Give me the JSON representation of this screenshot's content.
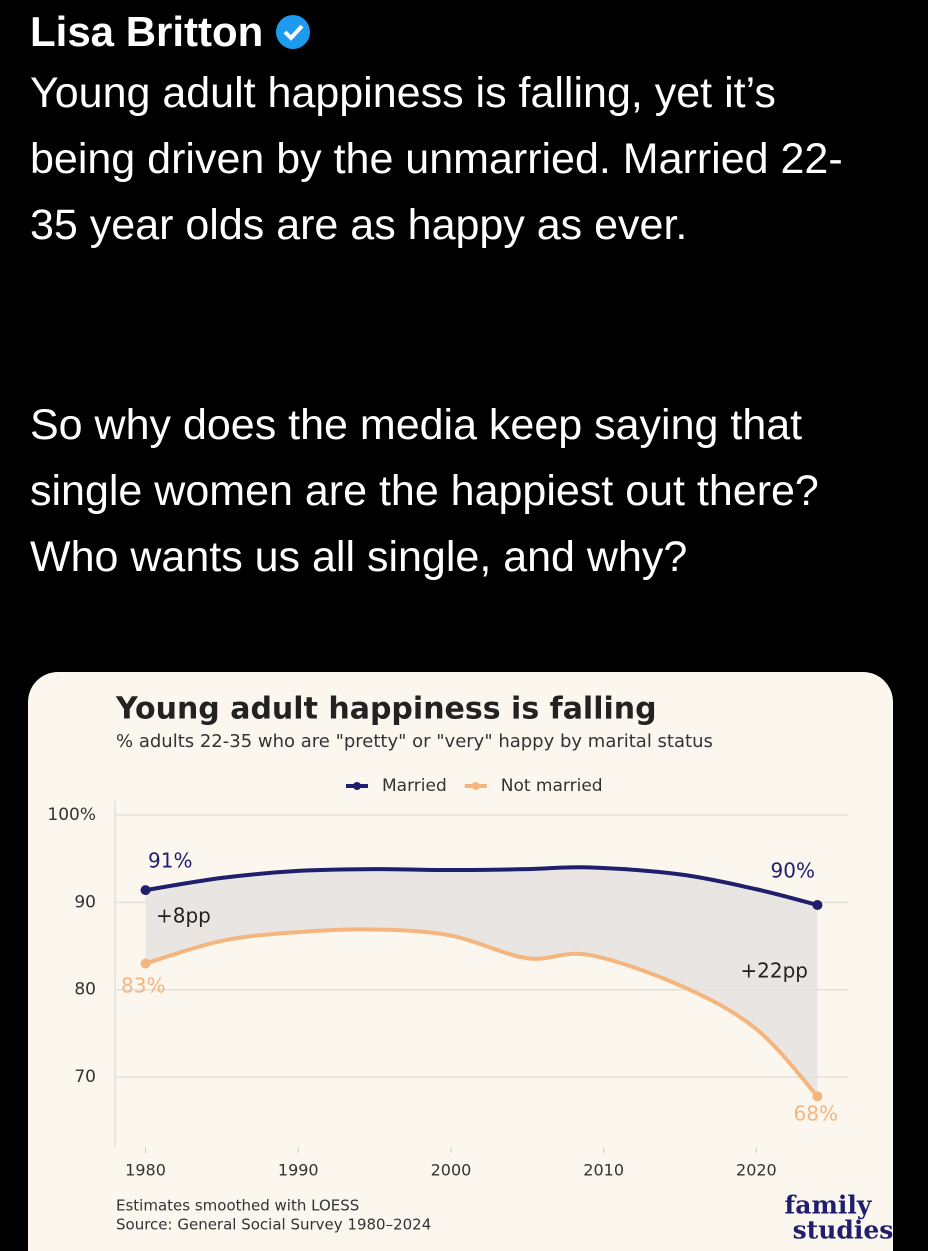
{
  "post": {
    "author": "Lisa Britton",
    "paragraphs": [
      "Young adult happiness is falling, yet it’s being driven by the unmarried. Married 22-35 year olds are as happy as ever.",
      "So why does the media keep saying that single women are the happiest out there? Who wants us all single, and why?"
    ]
  },
  "chart_data": {
    "type": "line",
    "title": "Young adult happiness is falling",
    "subtitle": "% adults 22-35 who are \"pretty\" or \"very\" happy by marital status",
    "x": [
      1980,
      1985,
      1990,
      1995,
      2000,
      2005,
      2009,
      2015,
      2020,
      2024
    ],
    "series": [
      {
        "name": "Married",
        "color": "#1f1f6e",
        "values": [
          91.4,
          92.8,
          93.6,
          93.8,
          93.7,
          93.8,
          94.0,
          93.2,
          91.5,
          89.7
        ]
      },
      {
        "name": "Not married",
        "color": "#f5b57e",
        "values": [
          83.0,
          85.6,
          86.6,
          86.9,
          86.2,
          83.6,
          84.0,
          80.5,
          75.5,
          67.8
        ]
      }
    ],
    "xlim": [
      1978,
      2026
    ],
    "xticks": [
      1980,
      1990,
      2000,
      2010,
      2020
    ],
    "ylim": [
      62,
      100
    ],
    "yticks": [
      70,
      80,
      90,
      {
        "value": 100,
        "label": "100%"
      }
    ],
    "grid": true,
    "annotations": [
      "91%",
      "90%",
      "+8pp",
      "+22pp",
      "83%",
      "68%"
    ],
    "notes": [
      "Estimates smoothed with LOESS",
      "Source: General Social Survey 1980–2024"
    ],
    "logo": [
      "family",
      "studies"
    ]
  }
}
